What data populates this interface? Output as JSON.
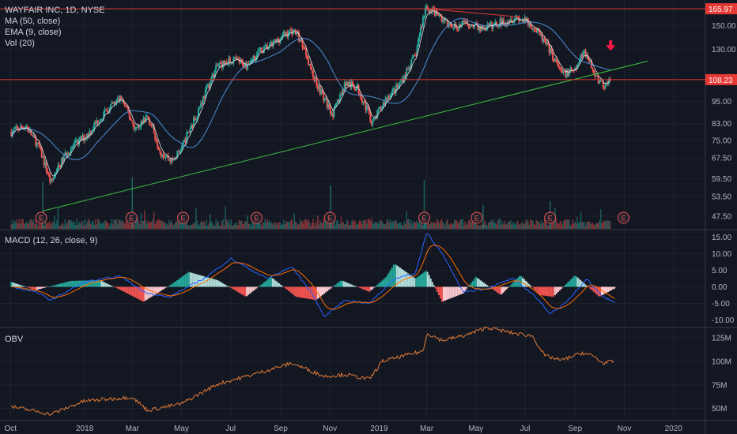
{
  "price_panel": {
    "title": "WAYFAIR INC, 1D, NYSE",
    "indicators": [
      "MA (50, close)",
      "EMA (9, close)",
      "Vol (20)"
    ]
  },
  "macd_panel": {
    "title": "MACD (12, 26, close, 9)"
  },
  "obv_panel": {
    "title": "OBV"
  },
  "colors": {
    "background": "#131722",
    "grid": "#1e222d",
    "up": "#26a69a",
    "down": "#ef5350",
    "ma": "#4a8fd6",
    "ema": "#e0e0e0",
    "trendline": "#3fbf3f",
    "resistance": "#e53935",
    "obv": "#e07a34",
    "macd": "#2962ff",
    "signal": "#ff6d00"
  },
  "chart_data": [
    {
      "type": "candlestick",
      "panel": "price",
      "title": "WAYFAIR INC, 1D, NYSE",
      "x_tick_labels": [
        "Oct",
        "2018",
        "Mar",
        "May",
        "Jul",
        "Sep",
        "Nov",
        "2019",
        "Mar",
        "May",
        "Jul",
        "Sep",
        "Nov",
        "2020"
      ],
      "y_tick_labels": [
        "150.00",
        "130.00",
        "108.23",
        "95.00",
        "83.00",
        "75.00",
        "67.50",
        "59.50",
        "53.50",
        "47.50"
      ],
      "y_scale": "log",
      "ylim": [
        44,
        175
      ],
      "price_labels": [
        {
          "text": "165.97",
          "value": 165.97,
          "color": "#e53935"
        },
        {
          "text": "108.23",
          "value": 108.23,
          "color": "#e53935"
        }
      ],
      "earnings_markers": [
        "E",
        "E",
        "E",
        "E",
        "E",
        "E",
        "E",
        "E",
        "E"
      ],
      "close_path": [
        [
          "2017-10-02",
          79
        ],
        [
          "2017-10-20",
          82
        ],
        [
          "2017-11-05",
          72
        ],
        [
          "2017-11-20",
          58
        ],
        [
          "2017-12-10",
          70
        ],
        [
          "2018-01-05",
          78
        ],
        [
          "2018-01-20",
          86
        ],
        [
          "2018-02-15",
          97
        ],
        [
          "2018-02-22",
          90
        ],
        [
          "2018-03-05",
          80
        ],
        [
          "2018-03-20",
          87
        ],
        [
          "2018-04-05",
          70
        ],
        [
          "2018-04-20",
          66
        ],
        [
          "2018-05-03",
          73
        ],
        [
          "2018-05-20",
          88
        ],
        [
          "2018-06-15",
          118
        ],
        [
          "2018-07-05",
          122
        ],
        [
          "2018-07-20",
          118
        ],
        [
          "2018-08-05",
          128
        ],
        [
          "2018-08-20",
          133
        ],
        [
          "2018-09-05",
          142
        ],
        [
          "2018-09-18",
          146
        ],
        [
          "2018-10-01",
          130
        ],
        [
          "2018-10-10",
          112
        ],
        [
          "2018-10-25",
          96
        ],
        [
          "2018-11-05",
          88
        ],
        [
          "2018-11-20",
          106
        ],
        [
          "2018-12-05",
          103
        ],
        [
          "2018-12-24",
          83
        ],
        [
          "2019-01-10",
          97
        ],
        [
          "2019-01-25",
          104
        ],
        [
          "2019-02-15",
          125
        ],
        [
          "2019-02-28",
          168
        ],
        [
          "2019-03-15",
          160
        ],
        [
          "2019-04-01",
          148
        ],
        [
          "2019-04-20",
          152
        ],
        [
          "2019-05-10",
          147
        ],
        [
          "2019-06-01",
          153
        ],
        [
          "2019-06-20",
          158
        ],
        [
          "2019-07-10",
          150
        ],
        [
          "2019-07-30",
          131
        ],
        [
          "2019-08-15",
          112
        ],
        [
          "2019-09-01",
          114
        ],
        [
          "2019-09-12",
          130
        ],
        [
          "2019-09-25",
          112
        ],
        [
          "2019-10-05",
          104
        ],
        [
          "2019-10-15",
          108
        ]
      ],
      "trendline": [
        [
          "2017-11-10",
          49
        ],
        [
          "2019-11-30",
          121
        ]
      ],
      "resistance_line": [
        [
          "2019-03-01",
          165.97
        ],
        [
          "2019-06-25",
          158
        ]
      ],
      "arrow_annotation": {
        "date": "2019-10-15",
        "direction": "down"
      }
    },
    {
      "type": "line",
      "panel": "macd",
      "title": "MACD (12, 26, close, 9)",
      "y_tick_labels": [
        "15.00",
        "10.00",
        "5.00",
        "0.00",
        "-5.00",
        "-10.00"
      ],
      "ylim": [
        -12,
        17
      ],
      "macd_path": [
        [
          "2017-10-02",
          0
        ],
        [
          "2017-11-01",
          -1.5
        ],
        [
          "2017-11-20",
          -4
        ],
        [
          "2018-01-01",
          1.5
        ],
        [
          "2018-02-15",
          3.2
        ],
        [
          "2018-03-15",
          -1.5
        ],
        [
          "2018-04-15",
          -3.2
        ],
        [
          "2018-06-01",
          3
        ],
        [
          "2018-07-01",
          8.5
        ],
        [
          "2018-08-15",
          2.5
        ],
        [
          "2018-09-15",
          6
        ],
        [
          "2018-10-10",
          -2
        ],
        [
          "2018-10-25",
          -9
        ],
        [
          "2018-11-20",
          -4
        ],
        [
          "2018-12-20",
          -5
        ],
        [
          "2019-01-20",
          2.5
        ],
        [
          "2019-02-15",
          4
        ],
        [
          "2019-03-01",
          16.5
        ],
        [
          "2019-03-20",
          10
        ],
        [
          "2019-04-15",
          -1.5
        ],
        [
          "2019-05-15",
          -0.5
        ],
        [
          "2019-06-15",
          2.5
        ],
        [
          "2019-07-10",
          -2
        ],
        [
          "2019-08-01",
          -8
        ],
        [
          "2019-08-20",
          -5
        ],
        [
          "2019-09-15",
          2.5
        ],
        [
          "2019-10-05",
          -3
        ],
        [
          "2019-10-20",
          -4.5
        ]
      ],
      "histogram_path": [
        [
          "2017-10-02",
          1.5
        ],
        [
          "2017-11-01",
          -1
        ],
        [
          "2017-12-15",
          1.8
        ],
        [
          "2018-01-20",
          2
        ],
        [
          "2018-02-15",
          -1
        ],
        [
          "2018-03-15",
          -4.5
        ],
        [
          "2018-04-20",
          1
        ],
        [
          "2018-05-10",
          4.5
        ],
        [
          "2018-06-15",
          2
        ],
        [
          "2018-07-20",
          -3
        ],
        [
          "2018-08-20",
          3
        ],
        [
          "2018-09-20",
          -3
        ],
        [
          "2018-10-15",
          -4
        ],
        [
          "2018-11-15",
          2
        ],
        [
          "2018-12-20",
          -1.5
        ],
        [
          "2019-01-10",
          3
        ],
        [
          "2019-01-20",
          7
        ],
        [
          "2019-02-15",
          2.5
        ],
        [
          "2019-03-01",
          5
        ],
        [
          "2019-03-20",
          -4.5
        ],
        [
          "2019-04-15",
          -2
        ],
        [
          "2019-05-01",
          3
        ],
        [
          "2019-06-01",
          -2.5
        ],
        [
          "2019-06-25",
          3.5
        ],
        [
          "2019-07-20",
          -2.5
        ],
        [
          "2019-08-05",
          -3
        ],
        [
          "2019-09-01",
          3.5
        ],
        [
          "2019-10-01",
          -3
        ],
        [
          "2019-10-20",
          -0.5
        ]
      ]
    },
    {
      "type": "line",
      "panel": "obv",
      "title": "OBV",
      "y_tick_labels": [
        "125M",
        "100M",
        "75M",
        "50M"
      ],
      "ylim": [
        38,
        135
      ],
      "obv_path": [
        [
          "2017-10-02",
          52
        ],
        [
          "2017-11-20",
          44
        ],
        [
          "2018-01-01",
          58
        ],
        [
          "2018-03-01",
          62
        ],
        [
          "2018-03-20",
          48
        ],
        [
          "2018-05-01",
          55
        ],
        [
          "2018-06-15",
          76
        ],
        [
          "2018-07-20",
          84
        ],
        [
          "2018-09-15",
          98
        ],
        [
          "2018-10-25",
          84
        ],
        [
          "2018-11-20",
          86
        ],
        [
          "2018-12-20",
          81
        ],
        [
          "2019-01-05",
          100
        ],
        [
          "2019-02-25",
          111
        ],
        [
          "2019-03-01",
          130
        ],
        [
          "2019-03-20",
          122
        ],
        [
          "2019-04-20",
          128
        ],
        [
          "2019-05-15",
          136
        ],
        [
          "2019-06-15",
          130
        ],
        [
          "2019-07-10",
          127
        ],
        [
          "2019-07-25",
          106
        ],
        [
          "2019-08-15",
          101
        ],
        [
          "2019-09-10",
          109
        ],
        [
          "2019-09-25",
          105
        ],
        [
          "2019-10-05",
          98
        ],
        [
          "2019-10-20",
          100
        ]
      ]
    }
  ]
}
